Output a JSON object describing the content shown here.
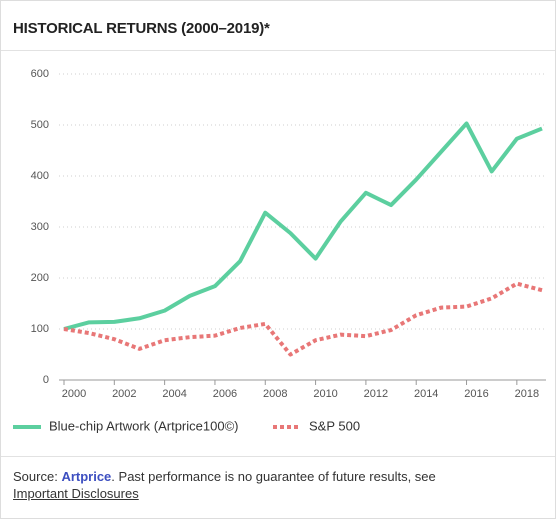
{
  "chart_data": {
    "type": "line",
    "title": "HISTORICAL RETURNS (2000–2019)*",
    "x": [
      2000,
      2001,
      2002,
      2003,
      2004,
      2005,
      2006,
      2007,
      2008,
      2009,
      2010,
      2011,
      2012,
      2013,
      2014,
      2015,
      2016,
      2017,
      2018,
      2019
    ],
    "series": [
      {
        "name": "Blue-chip Artwork (Artprice100©)",
        "color": "#5ccf9f",
        "dashed": false,
        "values": [
          100,
          113,
          114,
          121,
          136,
          165,
          184,
          233,
          328,
          288,
          238,
          311,
          367,
          343,
          393,
          448,
          503,
          409,
          473,
          493
        ]
      },
      {
        "name": "S&P 500",
        "color": "#e87777",
        "dashed": true,
        "values": [
          100,
          92,
          80,
          61,
          78,
          84,
          87,
          102,
          110,
          50,
          78,
          89,
          86,
          98,
          127,
          142,
          144,
          160,
          189,
          176
        ]
      }
    ],
    "xlim": [
      2000,
      2019
    ],
    "xticks": [
      2000,
      2002,
      2004,
      2006,
      2008,
      2010,
      2012,
      2014,
      2016,
      2018
    ],
    "ylim": [
      0,
      600
    ],
    "yticks": [
      0,
      100,
      200,
      300,
      400,
      500,
      600
    ],
    "grid": true,
    "legend": "bottom"
  },
  "footer": {
    "source_label": "Source:",
    "link": "Artprice",
    "text": ". Past performance is no guarantee of future results, see",
    "disclosures": "Important Disclosures"
  }
}
